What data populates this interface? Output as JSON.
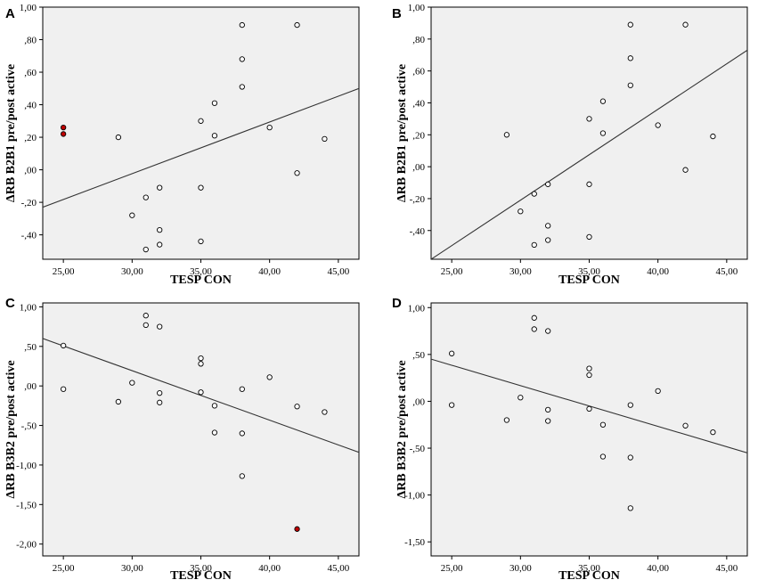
{
  "chart_data": [
    {
      "type": "scatter",
      "panel_label": "A",
      "xlabel": "TESP CON",
      "ylabel": "ΔRB B2B1 pre/post active",
      "xlim": [
        23.5,
        46.5
      ],
      "ylim": [
        -0.55,
        1.0
      ],
      "xticks": [
        25,
        30,
        35,
        40,
        45
      ],
      "xtick_labels": [
        "25,00",
        "30,00",
        "35,00",
        "40,00",
        "45,00"
      ],
      "yticks": [
        -0.4,
        -0.2,
        0.0,
        0.2,
        0.4,
        0.6,
        0.8,
        1.0
      ],
      "ytick_labels": [
        "-,40",
        "-,20",
        ",00",
        ",20",
        ",40",
        ",60",
        ",80",
        "1,00"
      ],
      "points": [
        {
          "x": 25,
          "y": 0.26,
          "highlight": true
        },
        {
          "x": 25,
          "y": 0.22,
          "highlight": true
        },
        {
          "x": 29,
          "y": 0.2
        },
        {
          "x": 30,
          "y": -0.28
        },
        {
          "x": 31,
          "y": -0.17
        },
        {
          "x": 31,
          "y": -0.49
        },
        {
          "x": 32,
          "y": -0.11
        },
        {
          "x": 32,
          "y": -0.37
        },
        {
          "x": 32,
          "y": -0.46
        },
        {
          "x": 35,
          "y": 0.3
        },
        {
          "x": 35,
          "y": -0.11
        },
        {
          "x": 35,
          "y": -0.44
        },
        {
          "x": 36,
          "y": 0.41
        },
        {
          "x": 36,
          "y": 0.21
        },
        {
          "x": 38,
          "y": 0.89
        },
        {
          "x": 38,
          "y": 0.68
        },
        {
          "x": 38,
          "y": 0.51
        },
        {
          "x": 40,
          "y": 0.26
        },
        {
          "x": 42,
          "y": 0.89
        },
        {
          "x": 42,
          "y": -0.02
        },
        {
          "x": 44,
          "y": 0.19
        }
      ],
      "fit_line": {
        "x": [
          23.5,
          46.5
        ],
        "y": [
          -0.23,
          0.5
        ]
      }
    },
    {
      "type": "scatter",
      "panel_label": "B",
      "xlabel": "TESP CON",
      "ylabel": "ΔRB B2B1 pre/post active",
      "xlim": [
        23.5,
        46.5
      ],
      "ylim": [
        -0.58,
        1.0
      ],
      "xticks": [
        25,
        30,
        35,
        40,
        45
      ],
      "xtick_labels": [
        "25,00",
        "30,00",
        "35,00",
        "40,00",
        "45,00"
      ],
      "yticks": [
        -0.4,
        -0.2,
        0.0,
        0.2,
        0.4,
        0.6,
        0.8,
        1.0
      ],
      "ytick_labels": [
        "-,40",
        "-,20",
        ",00",
        ",20",
        ",40",
        ",60",
        ",80",
        "1,00"
      ],
      "points": [
        {
          "x": 29,
          "y": 0.2
        },
        {
          "x": 30,
          "y": -0.28
        },
        {
          "x": 31,
          "y": -0.17
        },
        {
          "x": 31,
          "y": -0.49
        },
        {
          "x": 32,
          "y": -0.11
        },
        {
          "x": 32,
          "y": -0.37
        },
        {
          "x": 32,
          "y": -0.46
        },
        {
          "x": 35,
          "y": 0.3
        },
        {
          "x": 35,
          "y": -0.11
        },
        {
          "x": 35,
          "y": -0.44
        },
        {
          "x": 36,
          "y": 0.41
        },
        {
          "x": 36,
          "y": 0.21
        },
        {
          "x": 38,
          "y": 0.89
        },
        {
          "x": 38,
          "y": 0.68
        },
        {
          "x": 38,
          "y": 0.51
        },
        {
          "x": 40,
          "y": 0.26
        },
        {
          "x": 42,
          "y": 0.89
        },
        {
          "x": 42,
          "y": -0.02
        },
        {
          "x": 44,
          "y": 0.19
        }
      ],
      "fit_line": {
        "x": [
          23.5,
          46.5
        ],
        "y": [
          -0.58,
          0.73
        ]
      }
    },
    {
      "type": "scatter",
      "panel_label": "C",
      "xlabel": "TESP CON",
      "ylabel": "ΔRB B3B2  pre/post active",
      "xlim": [
        23.5,
        46.5
      ],
      "ylim": [
        -2.15,
        1.05
      ],
      "xticks": [
        25,
        30,
        35,
        40,
        45
      ],
      "xtick_labels": [
        "25,00",
        "30,00",
        "35,00",
        "40,00",
        "45,00"
      ],
      "yticks": [
        -2.0,
        -1.5,
        -1.0,
        -0.5,
        0.0,
        0.5,
        1.0
      ],
      "ytick_labels": [
        "-2,00",
        "-1,50",
        "-1,00",
        "-,50",
        ",00",
        ",50",
        "1,00"
      ],
      "points": [
        {
          "x": 25,
          "y": 0.51
        },
        {
          "x": 25,
          "y": -0.04
        },
        {
          "x": 29,
          "y": -0.2
        },
        {
          "x": 30,
          "y": 0.04
        },
        {
          "x": 31,
          "y": 0.89
        },
        {
          "x": 31,
          "y": 0.77
        },
        {
          "x": 32,
          "y": 0.75
        },
        {
          "x": 32,
          "y": -0.09
        },
        {
          "x": 32,
          "y": -0.21
        },
        {
          "x": 35,
          "y": 0.35
        },
        {
          "x": 35,
          "y": 0.28
        },
        {
          "x": 35,
          "y": -0.08
        },
        {
          "x": 36,
          "y": -0.25
        },
        {
          "x": 36,
          "y": -0.59
        },
        {
          "x": 38,
          "y": -0.04
        },
        {
          "x": 38,
          "y": -0.6
        },
        {
          "x": 38,
          "y": -1.14
        },
        {
          "x": 40,
          "y": 0.11
        },
        {
          "x": 42,
          "y": -0.26
        },
        {
          "x": 42,
          "y": -1.81,
          "highlight": true
        },
        {
          "x": 44,
          "y": -0.33
        }
      ],
      "fit_line": {
        "x": [
          23.5,
          46.5
        ],
        "y": [
          0.6,
          -0.84
        ]
      }
    },
    {
      "type": "scatter",
      "panel_label": "D",
      "xlabel": "TESP CON",
      "ylabel": "ΔRB B3B2  pre/post active",
      "xlim": [
        23.5,
        46.5
      ],
      "ylim": [
        -1.65,
        1.05
      ],
      "xticks": [
        25,
        30,
        35,
        40,
        45
      ],
      "xtick_labels": [
        "25,00",
        "30,00",
        "35,00",
        "40,00",
        "45,00"
      ],
      "yticks": [
        -1.5,
        -1.0,
        -0.5,
        0.0,
        0.5,
        1.0
      ],
      "ytick_labels": [
        "-1,50",
        "-1,00",
        "-,50",
        ",00",
        ",50",
        "1,00"
      ],
      "points": [
        {
          "x": 25,
          "y": 0.51
        },
        {
          "x": 25,
          "y": -0.04
        },
        {
          "x": 29,
          "y": -0.2
        },
        {
          "x": 30,
          "y": 0.04
        },
        {
          "x": 31,
          "y": 0.89
        },
        {
          "x": 31,
          "y": 0.77
        },
        {
          "x": 32,
          "y": 0.75
        },
        {
          "x": 32,
          "y": -0.09
        },
        {
          "x": 32,
          "y": -0.21
        },
        {
          "x": 35,
          "y": 0.35
        },
        {
          "x": 35,
          "y": 0.28
        },
        {
          "x": 35,
          "y": -0.08
        },
        {
          "x": 36,
          "y": -0.25
        },
        {
          "x": 36,
          "y": -0.59
        },
        {
          "x": 38,
          "y": -0.04
        },
        {
          "x": 38,
          "y": -0.6
        },
        {
          "x": 38,
          "y": -1.14
        },
        {
          "x": 40,
          "y": 0.11
        },
        {
          "x": 42,
          "y": -0.26
        },
        {
          "x": 44,
          "y": -0.33
        }
      ],
      "fit_line": {
        "x": [
          23.5,
          46.5
        ],
        "y": [
          0.45,
          -0.55
        ]
      }
    }
  ],
  "colors": {
    "plot_background": "#f0f0f0",
    "point_fill": "#ffffff",
    "highlight_fill": "#c00000",
    "ink": "#000000",
    "fit_line": "#333333"
  }
}
